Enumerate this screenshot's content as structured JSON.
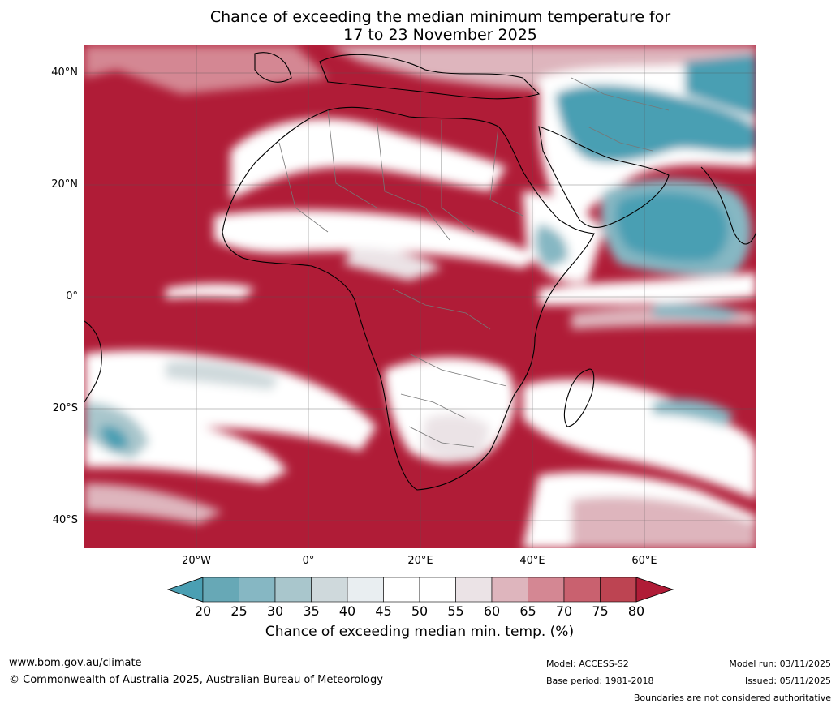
{
  "title_line1": "Chance of exceeding the median minimum temperature for",
  "title_line2": "17 to 23 November 2025",
  "lat_labels": [
    "40°N",
    "20°N",
    "0°",
    "20°S",
    "40°S"
  ],
  "lon_labels": [
    "20°W",
    "0°",
    "20°E",
    "40°E",
    "60°E"
  ],
  "colorbar": {
    "ticks": [
      "20",
      "25",
      "30",
      "35",
      "40",
      "45",
      "50",
      "55",
      "60",
      "65",
      "70",
      "75",
      "80"
    ],
    "colors": [
      "#4a9fb3",
      "#67a8b6",
      "#86b7c3",
      "#a9c6cc",
      "#cfd9dc",
      "#e9eef1",
      "#ffffff",
      "#ffffff",
      "#ebe3e6",
      "#deb5bd",
      "#d48793",
      "#c9616f",
      "#bd4452",
      "#b01c37"
    ],
    "label": "Chance of exceeding median min. temp. (%)"
  },
  "map_colors": {
    "high": "#b01c37",
    "mid_high": "#c9616f",
    "neutral": "#ffffff",
    "low": "#4a9fb3",
    "ocean_high": "#b01c37"
  },
  "footer": {
    "website": "www.bom.gov.au/climate",
    "copyright": "© Commonwealth of Australia 2025, Australian Bureau of Meteorology",
    "model": "Model: ACCESS-S2",
    "base_period": "Base period: 1981-2018",
    "model_run": "Model run: 03/11/2025",
    "issued": "Issued: 05/11/2025",
    "disclaimer": "Boundaries are not considered authoritative"
  }
}
